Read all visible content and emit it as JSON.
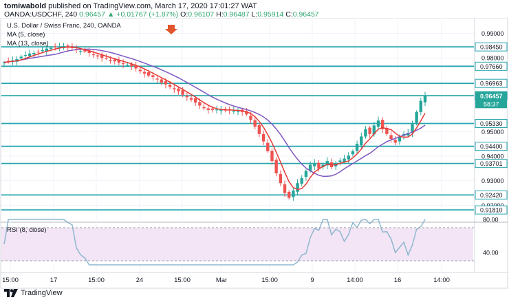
{
  "header": {
    "publisher": "tomiwabold",
    "published_text": "published on TradingView.com, March 17, 2020 17:01:27 WAT",
    "symbol": "OANDA:USDCHF, 240",
    "last": "0.96457",
    "change": "▲ +0.01767 (+1.87%)",
    "o_label": "O:",
    "o_value": "0.96107",
    "h_label": "H:",
    "h_value": "0.96487",
    "l_label": "L:",
    "l_value": "0.95914",
    "c_label": "C:",
    "c_value": "0.96457"
  },
  "chart_title": "U.S. Dollar / Swiss Franc, 240, OANDA",
  "legend": {
    "ma5": "MA (5, close)",
    "ma13": "MA (13, close)",
    "rsi": "RSI (8, close)"
  },
  "footer": {
    "brand": "TradingView"
  },
  "colors": {
    "up": "#26a69a",
    "down": "#ef5350",
    "ma5": "#e53935",
    "ma13": "#7e57c2",
    "hline": "#26a6b0",
    "rsi": "#8eb7cf",
    "rsi_band": "#f3e5f5",
    "arrow": "#e0552b",
    "price_tag": "#26a69a"
  },
  "price_axis": {
    "ticks": [
      "0.99000",
      "0.98000",
      "0.95000",
      "0.94000",
      "0.93000",
      "0.92000"
    ]
  },
  "support_resistance": [
    "0.98450",
    "0.97660",
    "0.96963",
    "0.96460",
    "0.95330",
    "0.94400",
    "0.93701",
    "0.92420",
    "0.91810"
  ],
  "current_price": {
    "value": "0.96457",
    "countdown": "58:37"
  },
  "time_axis": [
    "15:00",
    "17",
    "15:00",
    "24",
    "15:00",
    "Mar",
    "15:00",
    "9",
    "14:00",
    "16",
    "14:00"
  ],
  "rsi_axis": [
    "80.00",
    "40.00"
  ],
  "chart_data": {
    "type": "candlestick",
    "title": "U.S. Dollar / Swiss Franc, 240, OANDA",
    "ylim": [
      0.9145,
      0.9935
    ],
    "horizontal_levels": [
      0.9845,
      0.9766,
      0.96963,
      0.9646,
      0.9533,
      0.944,
      0.93701,
      0.9242,
      0.9181
    ],
    "closes": [
      0.9782,
      0.9786,
      0.979,
      0.9795,
      0.9805,
      0.9812,
      0.9818,
      0.982,
      0.9825,
      0.9832,
      0.9838,
      0.9841,
      0.9843,
      0.9846,
      0.9848,
      0.9842,
      0.984,
      0.9832,
      0.9828,
      0.9826,
      0.982,
      0.9812,
      0.9806,
      0.98,
      0.9798,
      0.9792,
      0.9786,
      0.9781,
      0.9775,
      0.9771,
      0.9766,
      0.9757,
      0.9746,
      0.9736,
      0.9728,
      0.9722,
      0.9712,
      0.97,
      0.9692,
      0.9682,
      0.9672,
      0.9664,
      0.965,
      0.964,
      0.963,
      0.9618,
      0.9606,
      0.9595,
      0.9588,
      0.9588,
      0.959,
      0.959,
      0.9586,
      0.9586,
      0.9585,
      0.9584,
      0.958,
      0.957,
      0.9548,
      0.952,
      0.949,
      0.946,
      0.942,
      0.938,
      0.933,
      0.929,
      0.925,
      0.923,
      0.926,
      0.929,
      0.931,
      0.934,
      0.9365,
      0.9372,
      0.935,
      0.9365,
      0.938,
      0.9355,
      0.9372,
      0.9382,
      0.939,
      0.9402,
      0.942,
      0.945,
      0.948,
      0.951,
      0.949,
      0.9525,
      0.9545,
      0.951,
      0.949,
      0.947,
      0.9455,
      0.948,
      0.949,
      0.9495,
      0.953,
      0.958,
      0.9625,
      0.9646
    ],
    "rsi_range": [
      0,
      100
    ],
    "rsi_levels": [
      70,
      30
    ]
  }
}
